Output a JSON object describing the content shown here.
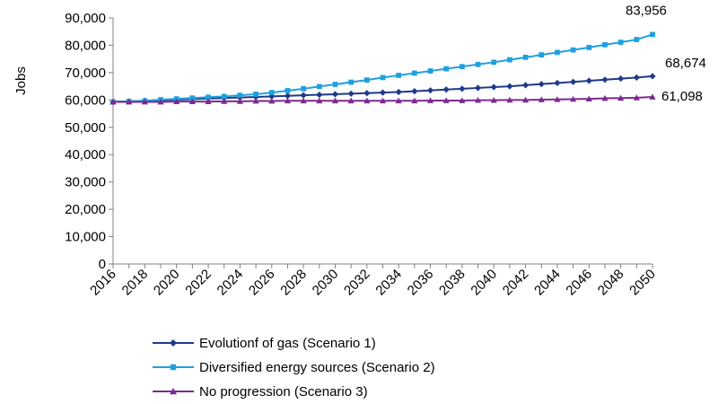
{
  "chart_data": {
    "type": "line",
    "title": "",
    "xlabel": "",
    "ylabel": "Jobs",
    "ylim": [
      0,
      90000
    ],
    "yticks": [
      0,
      10000,
      20000,
      30000,
      40000,
      50000,
      60000,
      70000,
      80000,
      90000
    ],
    "ytick_labels": [
      "0",
      "10,000",
      "20,000",
      "30,000",
      "40,000",
      "50,000",
      "60,000",
      "70,000",
      "80,000",
      "90,000"
    ],
    "x": [
      2016,
      2017,
      2018,
      2019,
      2020,
      2021,
      2022,
      2023,
      2024,
      2025,
      2026,
      2027,
      2028,
      2029,
      2030,
      2031,
      2032,
      2033,
      2034,
      2035,
      2036,
      2037,
      2038,
      2039,
      2040,
      2041,
      2042,
      2043,
      2044,
      2045,
      2046,
      2047,
      2048,
      2049,
      2050
    ],
    "xtick_labels": [
      "2016",
      "2018",
      "2020",
      "2022",
      "2024",
      "2026",
      "2028",
      "2030",
      "2032",
      "2034",
      "2036",
      "2038",
      "2040",
      "2042",
      "2044",
      "2046",
      "2048",
      "2050"
    ],
    "grid": false,
    "legend_position": "bottom",
    "series": [
      {
        "name": "Evolutionf of gas (Scenario 1)",
        "color": "#1f3a8a",
        "marker": "diamond",
        "end_label": "68,674",
        "values": [
          59300,
          59500,
          59700,
          59900,
          60100,
          60300,
          60500,
          60700,
          60900,
          61100,
          61300,
          61500,
          61700,
          61900,
          62100,
          62300,
          62500,
          62700,
          62900,
          63200,
          63500,
          63800,
          64100,
          64400,
          64700,
          65000,
          65400,
          65800,
          66200,
          66600,
          67000,
          67400,
          67800,
          68200,
          68674
        ]
      },
      {
        "name": "Diversified energy sources (Scenario 2)",
        "color": "#1ea0e0",
        "marker": "square",
        "end_label": "83,956",
        "values": [
          59300,
          59500,
          59700,
          60100,
          60400,
          60700,
          61000,
          61300,
          61700,
          62100,
          62700,
          63400,
          64100,
          64900,
          65700,
          66500,
          67300,
          68200,
          69000,
          69800,
          70600,
          71400,
          72200,
          73000,
          73800,
          74700,
          75600,
          76500,
          77400,
          78300,
          79200,
          80200,
          81100,
          82100,
          83956
        ]
      },
      {
        "name": "No progression (Scenario 3)",
        "color": "#7b2b8f",
        "marker": "triangle",
        "end_label": "61,098",
        "values": [
          59300,
          59300,
          59300,
          59300,
          59400,
          59400,
          59400,
          59500,
          59500,
          59600,
          59600,
          59700,
          59700,
          59700,
          59700,
          59700,
          59700,
          59700,
          59700,
          59700,
          59800,
          59800,
          59800,
          59900,
          59900,
          60000,
          60000,
          60100,
          60200,
          60300,
          60400,
          60600,
          60700,
          60800,
          61098
        ]
      }
    ]
  }
}
